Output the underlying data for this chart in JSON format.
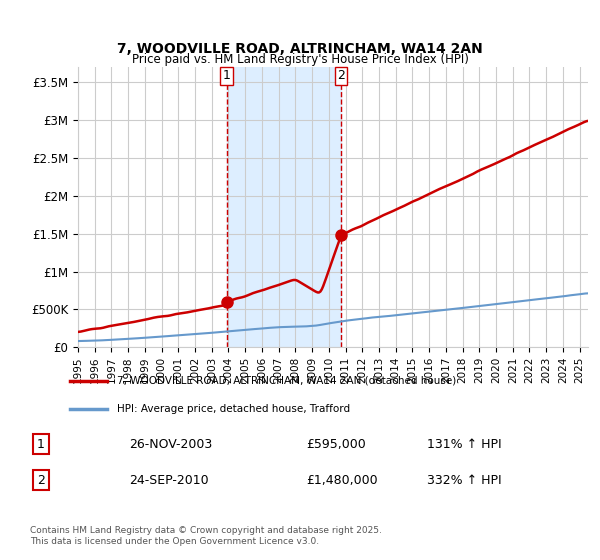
{
  "title_line1": "7, WOODVILLE ROAD, ALTRINCHAM, WA14 2AN",
  "title_line2": "Price paid vs. HM Land Registry's House Price Index (HPI)",
  "ylabel_ticks": [
    "£0",
    "£500K",
    "£1M",
    "£1.5M",
    "£2M",
    "£2.5M",
    "£3M",
    "£3.5M"
  ],
  "ytick_values": [
    0,
    500000,
    1000000,
    1500000,
    2000000,
    2500000,
    3000000,
    3500000
  ],
  "ylim": [
    0,
    3700000
  ],
  "xlim_start": 1995.0,
  "xlim_end": 2025.5,
  "purchase1_date": 2003.9,
  "purchase1_price": 595000,
  "purchase1_label": "1",
  "purchase2_date": 2010.73,
  "purchase2_price": 1480000,
  "purchase2_label": "2",
  "shaded_region_start": 2003.9,
  "shaded_region_end": 2010.73,
  "shaded_color": "#ddeeff",
  "dashed_line_color": "#cc0000",
  "property_line_color": "#cc0000",
  "hpi_line_color": "#6699cc",
  "legend_property_label": "7, WOODVILLE ROAD, ALTRINCHAM, WA14 2AN (detached house)",
  "legend_hpi_label": "HPI: Average price, detached house, Trafford",
  "table_row1": [
    "1",
    "26-NOV-2003",
    "£595,000",
    "131% ↑ HPI"
  ],
  "table_row2": [
    "2",
    "24-SEP-2010",
    "£1,480,000",
    "332% ↑ HPI"
  ],
  "footnote": "Contains HM Land Registry data © Crown copyright and database right 2025.\nThis data is licensed under the Open Government Licence v3.0.",
  "background_color": "#ffffff",
  "grid_color": "#cccccc"
}
